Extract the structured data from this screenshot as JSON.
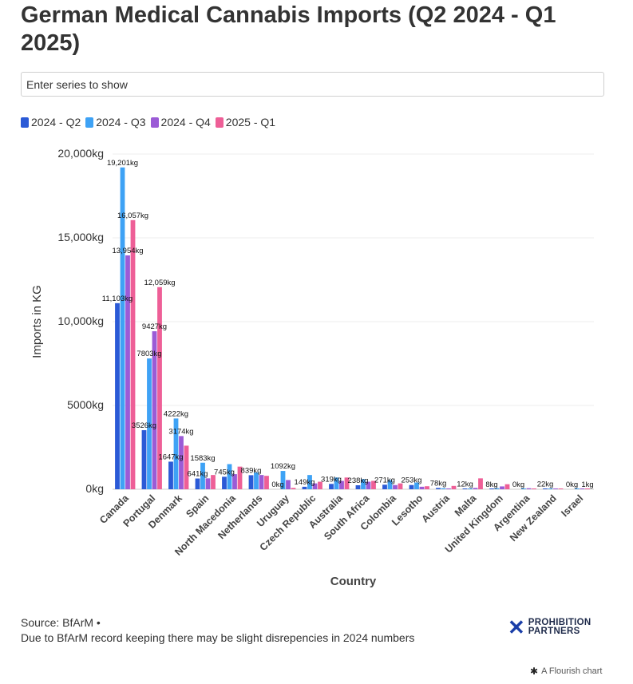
{
  "header": {
    "title": "German Medical Cannabis Imports (Q2 2024 - Q1 2025)"
  },
  "search": {
    "placeholder": "Enter series to show"
  },
  "legend": [
    {
      "label": "2024 - Q2",
      "color": "#2b5ad6"
    },
    {
      "label": "2024 - Q3",
      "color": "#3ea2f5"
    },
    {
      "label": "2024 - Q4",
      "color": "#9b5bd6"
    },
    {
      "label": "2025 - Q1",
      "color": "#ee5f97"
    }
  ],
  "chart_data": {
    "type": "bar",
    "title": "German Medical Cannabis Imports (Q2 2024 - Q1 2025)",
    "xlabel": "Country",
    "ylabel": "Imports in KG",
    "ylim": [
      0,
      20000
    ],
    "yticks": [
      {
        "value": 0,
        "label": "0kg"
      },
      {
        "value": 5000,
        "label": "5000kg"
      },
      {
        "value": 10000,
        "label": "10,000kg"
      },
      {
        "value": 15000,
        "label": "15,000kg"
      },
      {
        "value": 20000,
        "label": "20,000kg"
      }
    ],
    "grid": true,
    "legend_position": "top-left",
    "categories": [
      "Canada",
      "Portugal",
      "Denmark",
      "Spain",
      "North Macedonia",
      "Netherlands",
      "Uruguay",
      "Czech Republic",
      "Australia",
      "South Africa",
      "Colombia",
      "Lesotho",
      "Austria",
      "Malta",
      "United Kingdom",
      "Argentina",
      "New Zealand",
      "Israel"
    ],
    "series": [
      {
        "name": "2024 - Q2",
        "color": "#2b5ad6",
        "values": [
          11103,
          3526,
          1647,
          641,
          745,
          839,
          0,
          149,
          319,
          238,
          271,
          253,
          78,
          12,
          8,
          0,
          22,
          0
        ]
      },
      {
        "name": "2024 - Q3",
        "color": "#3ea2f5",
        "values": [
          19201,
          7803,
          4222,
          1583,
          1500,
          1000,
          1092,
          850,
          700,
          600,
          550,
          400,
          60,
          40,
          60,
          30,
          30,
          2
        ]
      },
      {
        "name": "2024 - Q4",
        "color": "#9b5bd6",
        "values": [
          13954,
          9427,
          3174,
          650,
          900,
          850,
          550,
          350,
          500,
          450,
          250,
          150,
          50,
          80,
          170,
          60,
          20,
          1
        ]
      },
      {
        "name": "2025 - Q1",
        "color": "#ee5f97",
        "values": [
          16057,
          12059,
          2600,
          850,
          1350,
          800,
          80,
          450,
          700,
          500,
          350,
          180,
          200,
          650,
          300,
          30,
          15,
          1
        ]
      }
    ],
    "data_labels": [
      {
        "series": 0,
        "category": 0,
        "text": "11,103kg"
      },
      {
        "series": 1,
        "category": 0,
        "text": "19,201kg"
      },
      {
        "series": 2,
        "category": 0,
        "text": "13,954kg"
      },
      {
        "series": 3,
        "category": 0,
        "text": "16,057kg"
      },
      {
        "series": 0,
        "category": 1,
        "text": "3526kg"
      },
      {
        "series": 1,
        "category": 1,
        "text": "7803kg"
      },
      {
        "series": 2,
        "category": 1,
        "text": "9427kg"
      },
      {
        "series": 3,
        "category": 1,
        "text": "12,059kg"
      },
      {
        "series": 0,
        "category": 2,
        "text": "1647kg"
      },
      {
        "series": 1,
        "category": 2,
        "text": "4222kg"
      },
      {
        "series": 2,
        "category": 2,
        "text": "3174kg"
      },
      {
        "series": 0,
        "category": 3,
        "text": "641kg"
      },
      {
        "series": 1,
        "category": 3,
        "text": "1583kg"
      },
      {
        "series": 0,
        "category": 4,
        "text": "745kg"
      },
      {
        "series": 0,
        "category": 5,
        "text": "839kg"
      },
      {
        "series": 0,
        "category": 6,
        "text": "0kg"
      },
      {
        "series": 1,
        "category": 6,
        "text": "1092kg"
      },
      {
        "series": 0,
        "category": 7,
        "text": "149kg"
      },
      {
        "series": 0,
        "category": 8,
        "text": "319kg"
      },
      {
        "series": 0,
        "category": 9,
        "text": "238kg"
      },
      {
        "series": 0,
        "category": 10,
        "text": "271kg"
      },
      {
        "series": 0,
        "category": 11,
        "text": "253kg"
      },
      {
        "series": 0,
        "category": 12,
        "text": "78kg"
      },
      {
        "series": 0,
        "category": 13,
        "text": "12kg"
      },
      {
        "series": 0,
        "category": 14,
        "text": "8kg"
      },
      {
        "series": 0,
        "category": 15,
        "text": "0kg"
      },
      {
        "series": 0,
        "category": 16,
        "text": "22kg"
      },
      {
        "series": 0,
        "category": 17,
        "text": "0kg"
      },
      {
        "series": 3,
        "category": 17,
        "text": "1kg"
      }
    ]
  },
  "footer": {
    "source": "Source: BfArM •",
    "note": "Due to BfArM record keeping there may be slight disrepencies in 2024 numbers",
    "brand_mark": "✕",
    "brand_line1": "PROHIBITION",
    "brand_line2": "PARTNERS",
    "flourish_icon": "✱",
    "flourish_label": "A Flourish chart"
  }
}
